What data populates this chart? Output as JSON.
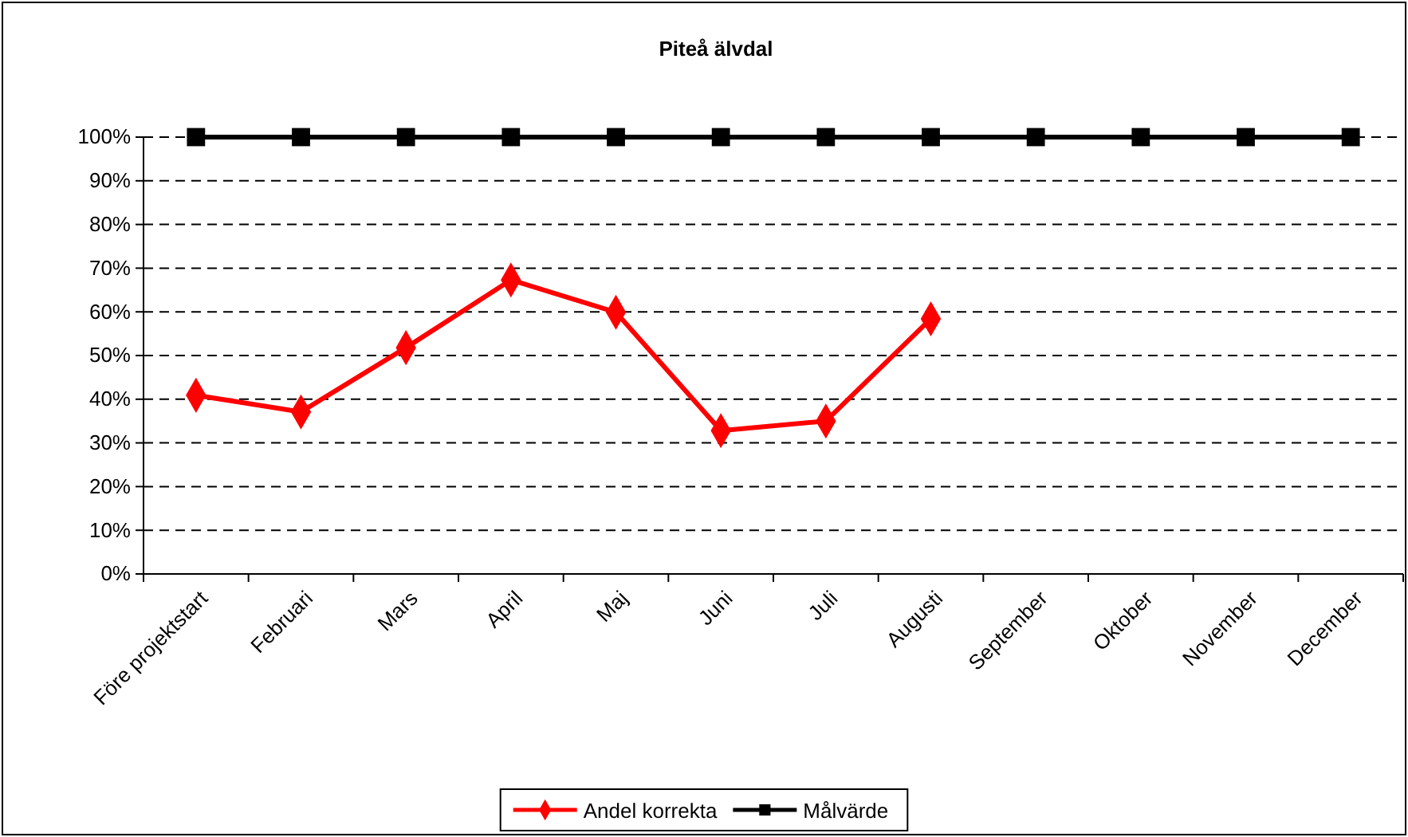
{
  "chart_data": {
    "type": "line",
    "title": "Piteå älvdal",
    "categories": [
      "Före projektstart",
      "Februari",
      "Mars",
      "April",
      "Maj",
      "Juni",
      "Juli",
      "Augusti",
      "September",
      "Oktober",
      "November",
      "December"
    ],
    "series": [
      {
        "name": "Andel korrekta",
        "color": "#ff0000",
        "marker": "diamond",
        "values": [
          40.9,
          37.1,
          51.8,
          67.3,
          59.9,
          32.8,
          35.0,
          58.4,
          null,
          null,
          null,
          null
        ]
      },
      {
        "name": "Målvärde",
        "color": "#000000",
        "marker": "square",
        "values": [
          100,
          100,
          100,
          100,
          100,
          100,
          100,
          100,
          100,
          100,
          100,
          100
        ]
      }
    ],
    "ylim": [
      0,
      100
    ],
    "yticks": [
      {
        "value": 0,
        "label": "0%"
      },
      {
        "value": 10,
        "label": "10%"
      },
      {
        "value": 20,
        "label": "20%"
      },
      {
        "value": 30,
        "label": "30%"
      },
      {
        "value": 40,
        "label": "40%"
      },
      {
        "value": 50,
        "label": "50%"
      },
      {
        "value": 60,
        "label": "60%"
      },
      {
        "value": 70,
        "label": "70%"
      },
      {
        "value": 80,
        "label": "80%"
      },
      {
        "value": 90,
        "label": "90%"
      },
      {
        "value": 100,
        "label": "100%"
      }
    ],
    "grid": "y",
    "legend": "bottom",
    "line_style": "solid"
  }
}
